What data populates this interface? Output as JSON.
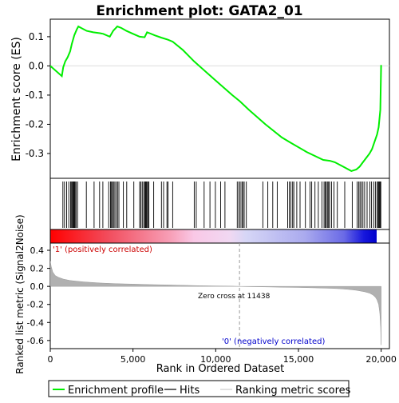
{
  "colors": {
    "enrichment_line": "#00ee00",
    "hits": "#000000",
    "metric_fill": "#b0b0b0",
    "zero_cross_line": "#999999",
    "positive_label": "#cc0000",
    "negative_label": "#0000cc",
    "frame": "#000000"
  },
  "chart_data": [
    {
      "type": "line",
      "title": "Enrichment plot: GATA2_01",
      "xlabel": "",
      "ylabel": "Enrichment score (ES)",
      "xlim": [
        0,
        20500
      ],
      "ylim": [
        -0.385,
        0.16
      ],
      "yticks": [
        0.1,
        0.0,
        -0.1,
        -0.2,
        -0.3
      ],
      "ytick_labels": [
        "0.1",
        "0.0",
        "-0.1",
        "-0.2",
        "-0.3"
      ],
      "grid": false,
      "series": [
        {
          "name": "Enrichment profile",
          "x": [
            0,
            700,
            780,
            900,
            1050,
            1200,
            1300,
            1450,
            1600,
            1700,
            2200,
            2600,
            3000,
            3200,
            3600,
            3800,
            4050,
            4300,
            4600,
            5000,
            5400,
            5700,
            5850,
            6000,
            6300,
            6700,
            7100,
            7400,
            8000,
            8700,
            9500,
            10000,
            11000,
            11438,
            12000,
            13000,
            14000,
            14500,
            15500,
            16500,
            16900,
            17200,
            17700,
            18200,
            18500,
            18700,
            18900,
            19100,
            19300,
            19450,
            19600,
            19750,
            19850,
            19950,
            20000
          ],
          "y": [
            0.0,
            -0.035,
            -0.005,
            0.015,
            0.03,
            0.05,
            0.075,
            0.105,
            0.125,
            0.135,
            0.12,
            0.115,
            0.112,
            0.11,
            0.1,
            0.12,
            0.135,
            0.13,
            0.12,
            0.11,
            0.1,
            0.098,
            0.115,
            0.112,
            0.105,
            0.097,
            0.09,
            0.083,
            0.055,
            0.015,
            -0.025,
            -0.05,
            -0.1,
            -0.12,
            -0.15,
            -0.2,
            -0.245,
            -0.262,
            -0.295,
            -0.322,
            -0.325,
            -0.33,
            -0.345,
            -0.36,
            -0.355,
            -0.345,
            -0.33,
            -0.315,
            -0.3,
            -0.285,
            -0.26,
            -0.235,
            -0.21,
            -0.15,
            0.003
          ]
        }
      ]
    },
    {
      "type": "scatter",
      "series": [
        {
          "name": "Hits",
          "x": [
            760,
            860,
            990,
            1120,
            1230,
            1290,
            1340,
            1380,
            1420,
            1460,
            1500,
            1560,
            1650,
            2180,
            2650,
            2980,
            3180,
            3530,
            3640,
            3700,
            3760,
            3820,
            3900,
            3980,
            4070,
            4150,
            4420,
            4620,
            5050,
            5400,
            5480,
            5560,
            5650,
            5720,
            5760,
            5800,
            5840,
            5900,
            5960,
            6250,
            6720,
            6850,
            7050,
            7120,
            7400,
            8700,
            8820,
            9300,
            9650,
            9980,
            10300,
            10560,
            11300,
            11400,
            11480,
            11580,
            11640,
            11720,
            11850,
            12850,
            13150,
            13450,
            13720,
            14350,
            14450,
            14550,
            14650,
            14720,
            14900,
            15100,
            15420,
            15700,
            15800,
            16000,
            16200,
            16420,
            16550,
            16620,
            16680,
            16750,
            16820,
            16880,
            17000,
            17150,
            17350,
            17800,
            18250,
            18550,
            18650,
            18720,
            18800,
            18900,
            19000,
            19150,
            19320,
            19420,
            19550,
            19650,
            19750,
            19820,
            19860,
            19900,
            19940,
            19980
          ]
        }
      ]
    },
    {
      "type": "area",
      "xlabel": "Rank in Ordered Dataset",
      "ylabel": "Ranked list metric (Signal2Noise)",
      "xlim": [
        0,
        20500
      ],
      "ylim": [
        -0.69,
        0.48
      ],
      "xticks": [
        0,
        5000,
        10000,
        15000,
        20000
      ],
      "xtick_labels": [
        "0",
        "5,000",
        "10,000",
        "15,000",
        "20,000"
      ],
      "yticks": [
        0.4,
        0.2,
        0.0,
        -0.2,
        -0.4,
        -0.6
      ],
      "ytick_labels": [
        "0.4",
        "0.2",
        "0.0",
        "-0.2",
        "-0.4",
        "-0.6"
      ],
      "grid": false,
      "series": [
        {
          "name": "Ranking metric scores",
          "x": [
            0,
            60,
            150,
            300,
            500,
            800,
            1200,
            2000,
            3000,
            4000,
            5000,
            6000,
            7000,
            8000,
            9000,
            10000,
            11000,
            11438,
            12000,
            13000,
            14000,
            15000,
            16000,
            17000,
            17500,
            18000,
            18500,
            19000,
            19300,
            19500,
            19650,
            19750,
            19850,
            19920,
            19970,
            20000
          ],
          "y": [
            0.28,
            0.22,
            0.16,
            0.12,
            0.1,
            0.08,
            0.065,
            0.05,
            0.038,
            0.03,
            0.025,
            0.02,
            0.016,
            0.012,
            0.008,
            0.005,
            0.002,
            0.0,
            -0.003,
            -0.006,
            -0.009,
            -0.012,
            -0.016,
            -0.022,
            -0.026,
            -0.033,
            -0.043,
            -0.06,
            -0.075,
            -0.095,
            -0.12,
            -0.15,
            -0.2,
            -0.3,
            -0.45,
            -0.65
          ]
        }
      ],
      "annotations": {
        "zero_cross": "Zero cross at 11438",
        "zero_cross_x": 11438,
        "positive": "'1' (positively correlated)",
        "negative": "'0' (negatively correlated)"
      }
    }
  ],
  "heatmap_band": {
    "stops": [
      {
        "offset": 0.0,
        "color": "#ff0000"
      },
      {
        "offset": 0.18,
        "color": "#f24e5e"
      },
      {
        "offset": 0.37,
        "color": "#f7a0b8"
      },
      {
        "offset": 0.44,
        "color": "#f9c8e6"
      },
      {
        "offset": 0.55,
        "color": "#f1d8f2"
      },
      {
        "offset": 0.6,
        "color": "#d6d6f6"
      },
      {
        "offset": 0.78,
        "color": "#aaaaee"
      },
      {
        "offset": 0.9,
        "color": "#6a6ae6"
      },
      {
        "offset": 0.96,
        "color": "#1818dd"
      },
      {
        "offset": 1.0,
        "color": "#0000cc"
      }
    ]
  },
  "legend": {
    "items": [
      {
        "label": "Enrichment profile",
        "symbol": "green-line"
      },
      {
        "label": "Hits",
        "symbol": "black-line"
      },
      {
        "label": "Ranking metric scores",
        "symbol": "gray-line"
      }
    ]
  }
}
